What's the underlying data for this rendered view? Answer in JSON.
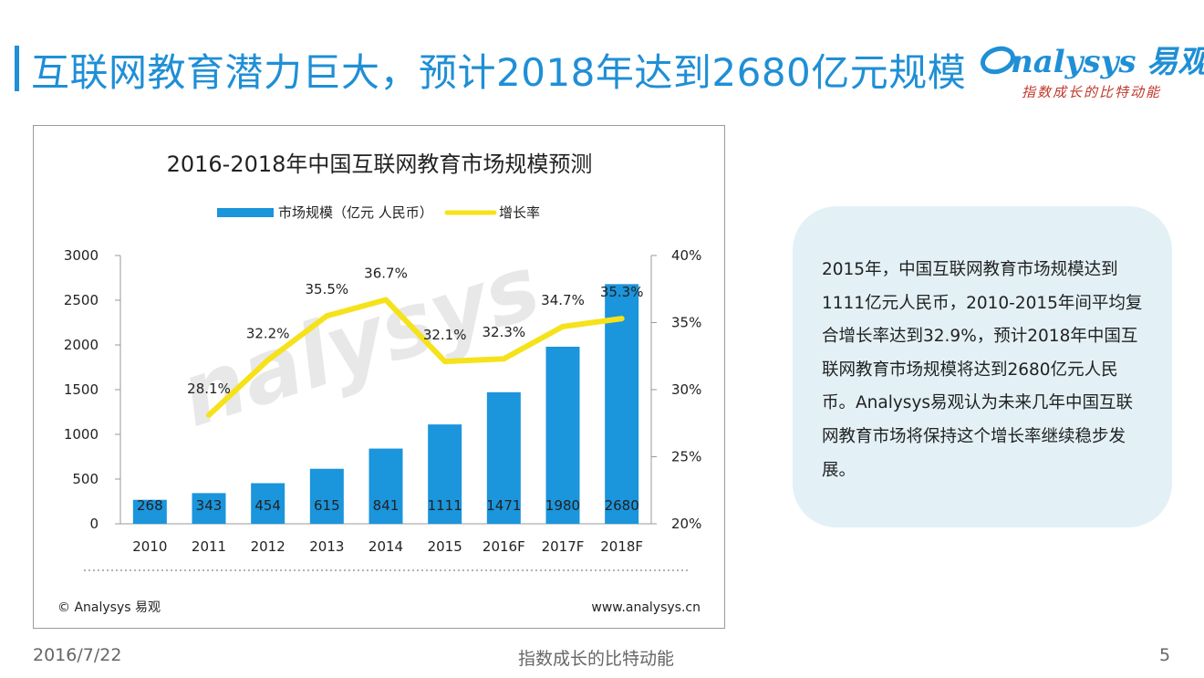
{
  "header": {
    "title": "互联网教育潜力巨大，预计2018年达到2680亿元规模",
    "logo_brand": "nalysys 易观",
    "logo_slogan": "指数成长的比特动能"
  },
  "chart_data": {
    "type": "bar+line",
    "title": "2016-2018年中国互联网教育市场规模预测",
    "categories": [
      "2010",
      "2011",
      "2012",
      "2013",
      "2014",
      "2015",
      "2016F",
      "2017F",
      "2018F"
    ],
    "series": [
      {
        "name": "市场规模（亿元 人民币）",
        "type": "bar",
        "axis": "left",
        "color": "#1b95dc",
        "values": [
          268,
          343,
          454,
          615,
          841,
          1111,
          1471,
          1980,
          2680
        ],
        "labels": [
          "268",
          "343",
          "454",
          "615",
          "841",
          "1111",
          "1471",
          "1980",
          "2680"
        ]
      },
      {
        "name": "增长率",
        "type": "line",
        "axis": "right",
        "color": "#f5e21b",
        "values": [
          null,
          28.1,
          32.2,
          35.5,
          36.7,
          32.1,
          32.3,
          34.7,
          35.3
        ],
        "labels": [
          "",
          "28.1%",
          "32.2%",
          "35.5%",
          "36.7%",
          "32.1%",
          "32.3%",
          "34.7%",
          "35.3%"
        ]
      }
    ],
    "y_left": {
      "min": 0,
      "max": 3000,
      "ticks": [
        0,
        500,
        1000,
        1500,
        2000,
        2500,
        3000
      ],
      "tick_labels": [
        "0",
        "500",
        "1000",
        "1500",
        "2000",
        "2500",
        "3000"
      ]
    },
    "y_right": {
      "min": 20,
      "max": 40,
      "ticks": [
        20,
        25,
        30,
        35,
        40
      ],
      "tick_labels": [
        "20%",
        "25%",
        "30%",
        "35%",
        "40%"
      ]
    },
    "legend_position": "top",
    "grid": false,
    "source_left": "© Analysys 易观",
    "source_right": "www.analysys.cn",
    "watermark": "nalysys"
  },
  "callout": {
    "text": "2015年，中国互联网教育市场规模达到1111亿元人民币，2010-2015年间平均复合增长率达到32.9%，预计2018年中国互联网教育市场规模将达到2680亿元人民币。Analysys易观认为未来几年中国互联网教育市场将保持这个增长率继续稳步发展。"
  },
  "footer": {
    "date": "2016/7/22",
    "slogan": "指数成长的比特动能",
    "page": "5"
  }
}
